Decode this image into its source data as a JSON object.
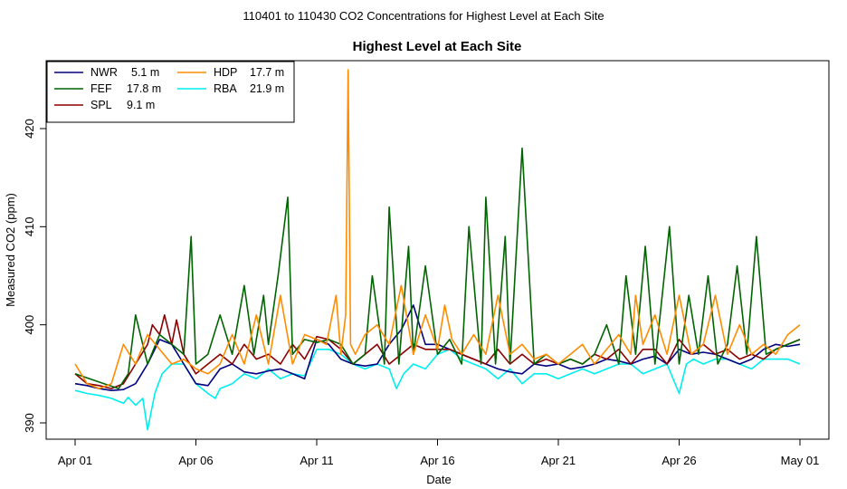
{
  "suptitle": "110401  to  110430 CO2 Concentrations for Highest Level at Each Site",
  "chart_data": {
    "type": "line",
    "title": "Highest Level at Each Site",
    "xlabel": "Date",
    "ylabel": "Measured CO2 (ppm)",
    "xlim": [
      0,
      30.1
    ],
    "ylim": [
      389,
      427
    ],
    "x_ticks": [
      {
        "value": 0,
        "label": "Apr 01"
      },
      {
        "value": 5,
        "label": "Apr 06"
      },
      {
        "value": 10,
        "label": "Apr 11"
      },
      {
        "value": 15,
        "label": "Apr 16"
      },
      {
        "value": 20,
        "label": "Apr 21"
      },
      {
        "value": 25,
        "label": "Apr 26"
      },
      {
        "value": 30,
        "label": "May 01"
      }
    ],
    "y_ticks": [
      390,
      400,
      410,
      420
    ],
    "legend_position": "top-left",
    "series": [
      {
        "name": "NWR",
        "height": "5.1 m",
        "color": "#000080",
        "x": [
          0,
          0.5,
          1,
          1.5,
          2,
          2.5,
          3,
          3.5,
          4,
          4.5,
          5,
          5.5,
          6,
          6.5,
          7,
          7.5,
          8,
          8.5,
          9,
          9.5,
          10,
          10.5,
          11,
          11.5,
          12,
          12.5,
          13,
          13.5,
          14,
          14.5,
          15,
          15.5,
          16,
          16.5,
          17,
          17.5,
          18,
          18.5,
          19,
          19.5,
          20,
          20.5,
          21,
          21.5,
          22,
          22.5,
          23,
          23.5,
          24,
          24.5,
          25,
          25.5,
          26,
          26.5,
          27,
          27.5,
          28,
          28.5,
          29,
          29.5,
          30
        ],
        "y": [
          394,
          393.8,
          393.5,
          393.3,
          393.4,
          394,
          396,
          398.5,
          398,
          396,
          394,
          393.8,
          395.5,
          396,
          395.2,
          395,
          395.3,
          395.5,
          395,
          394.5,
          398.5,
          398,
          396.5,
          396,
          395.8,
          396,
          398,
          399.5,
          402,
          398,
          398,
          397.5,
          397,
          396.5,
          396,
          395.5,
          395.2,
          395,
          396,
          395.8,
          396,
          395.5,
          395.7,
          396,
          396.5,
          396.3,
          396,
          396.5,
          396.8,
          396,
          397.5,
          397,
          397.2,
          397,
          396.5,
          396,
          396.5,
          397.5,
          398,
          397.8,
          398
        ]
      },
      {
        "name": "FEF",
        "height": "17.8 m",
        "color": "#006400",
        "x": [
          0,
          0.6,
          1.2,
          1.8,
          2.2,
          2.5,
          3,
          3.5,
          4,
          4.5,
          4.8,
          5,
          5.5,
          6,
          6.5,
          7,
          7.4,
          7.8,
          8,
          8.4,
          8.8,
          9,
          9.5,
          10,
          10.5,
          11,
          11.5,
          12,
          12.3,
          12.8,
          13,
          13.4,
          13.8,
          14,
          14.5,
          15,
          15.5,
          16,
          16.3,
          16.8,
          17,
          17.4,
          17.8,
          18,
          18.5,
          19,
          19.5,
          20,
          20.5,
          21,
          21.5,
          22,
          22.5,
          22.8,
          23.2,
          23.6,
          24,
          24.6,
          25,
          25.4,
          25.8,
          26.2,
          26.6,
          27,
          27.4,
          27.8,
          28.2,
          28.6,
          29,
          29.5,
          30
        ],
        "y": [
          395,
          394.5,
          394,
          393.5,
          395,
          401,
          396,
          399,
          398,
          397,
          409,
          396,
          397,
          401,
          397,
          404,
          397,
          403,
          398,
          405,
          413,
          397,
          398.5,
          398.2,
          398.5,
          398,
          396,
          397,
          405,
          396,
          412,
          396,
          408,
          397,
          406,
          397,
          398.5,
          396,
          410,
          396,
          413,
          396,
          409,
          396,
          418,
          396,
          397,
          396,
          396.5,
          396,
          397,
          400,
          396,
          405,
          397,
          408,
          396,
          410,
          396,
          403,
          397,
          405,
          396,
          398,
          406,
          397,
          409,
          397,
          397.5,
          398,
          398.5
        ]
      },
      {
        "name": "SPL",
        "height": "9.1 m",
        "color": "#8b0000",
        "x": [
          0,
          0.5,
          1,
          1.5,
          2,
          2.5,
          3,
          3.2,
          3.5,
          3.7,
          4,
          4.2,
          4.5,
          5,
          5.5,
          6,
          6.5,
          7,
          7.5,
          8,
          8.5,
          9,
          9.5,
          10,
          10.5,
          11,
          11.5,
          12,
          12.5,
          13,
          13.5,
          14,
          14.5,
          15,
          15.5,
          16,
          16.5,
          17,
          17.5,
          18,
          18.5,
          19,
          19.5,
          20,
          20.5,
          21,
          21.5,
          22,
          22.5,
          23,
          23.5,
          24,
          24.5,
          25,
          25.5,
          26,
          26.5,
          27,
          27.5,
          28,
          28.5,
          29,
          29.5,
          30
        ],
        "y": [
          395,
          394,
          393.8,
          393.5,
          394,
          396,
          398,
          400,
          399,
          401,
          398,
          400.5,
          397,
          395,
          396,
          397,
          396,
          398,
          396.5,
          397,
          396,
          398,
          396.5,
          398.8,
          398.5,
          397.5,
          396,
          397,
          398,
          396,
          397,
          398,
          397.5,
          397.5,
          397.5,
          397,
          396.5,
          396,
          397.5,
          396,
          397,
          396,
          396.5,
          396,
          396.5,
          396,
          397,
          396.5,
          397.5,
          396,
          397.5,
          397.5,
          396,
          398.5,
          397,
          398,
          397,
          397.5,
          396.5,
          397,
          396.5,
          397.5,
          398,
          398.5
        ]
      },
      {
        "name": "HDP",
        "height": "17.7 m",
        "color": "#ff8c00",
        "x": [
          0,
          0.5,
          1,
          1.5,
          2,
          2.5,
          3,
          3.5,
          4,
          4.5,
          5,
          5.5,
          6,
          6.5,
          7,
          7.5,
          8,
          8.5,
          9,
          9.5,
          10,
          10.4,
          10.8,
          11,
          11.2,
          11.3,
          11.4,
          11.6,
          12,
          12.5,
          13,
          13.5,
          14,
          14.5,
          15,
          15.3,
          15.6,
          16,
          16.5,
          17,
          17.5,
          18,
          18.5,
          19,
          19.5,
          20,
          20.5,
          21,
          21.5,
          22,
          22.5,
          23,
          23.2,
          23.5,
          24,
          24.5,
          25,
          25.5,
          26,
          26.5,
          27,
          27.5,
          28,
          28.5,
          29,
          29.5,
          30
        ],
        "y": [
          396,
          394,
          393.5,
          394,
          398,
          396,
          399,
          397.5,
          396,
          396.5,
          395.5,
          395,
          396,
          399,
          396,
          401,
          396,
          403,
          396,
          399,
          398.5,
          398,
          403,
          397,
          401,
          426,
          398,
          397,
          399,
          400,
          398,
          404,
          397,
          401,
          397.5,
          402,
          398.5,
          397,
          399,
          397,
          403,
          397,
          398,
          396.5,
          397,
          396,
          397,
          398,
          396,
          397.5,
          399,
          397,
          403,
          398,
          401,
          397,
          403,
          397,
          398,
          403,
          397,
          400,
          397,
          398,
          397,
          399,
          400
        ]
      },
      {
        "name": "RBA",
        "height": "21.9 m",
        "color": "#00eeee",
        "x": [
          0,
          0.5,
          1,
          1.5,
          2,
          2.2,
          2.5,
          2.8,
          3,
          3.3,
          3.6,
          4,
          4.5,
          5,
          5.5,
          5.8,
          6,
          6.5,
          7,
          7.5,
          8,
          8.5,
          9,
          9.5,
          10,
          10.5,
          11,
          11.5,
          12,
          12.5,
          13,
          13.3,
          13.6,
          14,
          14.5,
          15,
          15.5,
          16,
          16.5,
          17,
          17.5,
          18,
          18.5,
          19,
          19.5,
          20,
          20.5,
          21,
          21.5,
          22,
          22.5,
          23,
          23.5,
          24,
          24.5,
          25,
          25.3,
          25.6,
          26,
          26.5,
          27,
          27.5,
          28,
          28.5,
          29,
          29.5,
          30
        ],
        "y": [
          393.3,
          393,
          392.8,
          392.5,
          392,
          392.6,
          391.8,
          392.5,
          389.3,
          393,
          395,
          396,
          396,
          394,
          393,
          392.5,
          393.5,
          394,
          395,
          394.5,
          395.5,
          394.5,
          395,
          394.8,
          397.5,
          397.5,
          397,
          396,
          395.5,
          396,
          395.5,
          393.5,
          395,
          396,
          395.5,
          397,
          397.5,
          396.5,
          396,
          395.5,
          394.5,
          395.5,
          394,
          395,
          395,
          394.5,
          395,
          395.5,
          395,
          395.5,
          396,
          396,
          395,
          395.5,
          396,
          393,
          396,
          396.5,
          396,
          396.5,
          396.5,
          396,
          395.5,
          396.5,
          396.5,
          396.5,
          396
        ]
      }
    ]
  }
}
